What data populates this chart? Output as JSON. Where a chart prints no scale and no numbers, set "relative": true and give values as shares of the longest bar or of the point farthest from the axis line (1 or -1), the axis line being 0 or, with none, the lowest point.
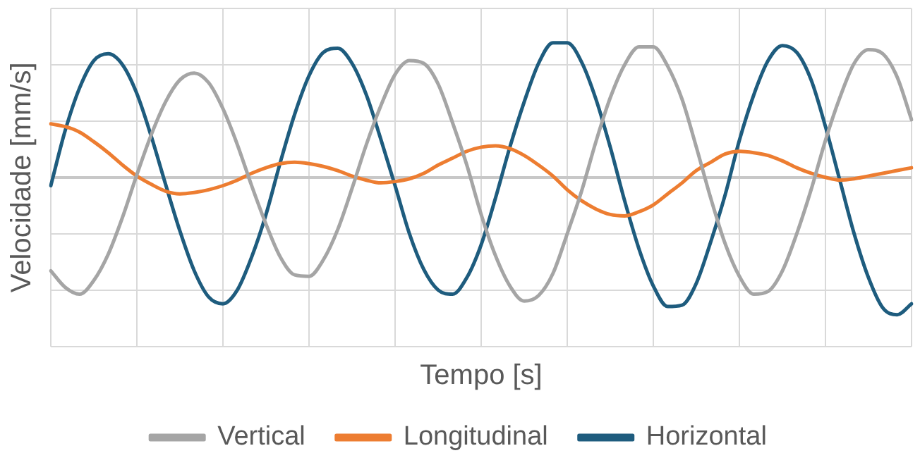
{
  "chart_data": {
    "type": "line",
    "relative": true,
    "xlabel": "Tempo [s]",
    "ylabel": "Velocidade [mm/s]",
    "grid": true,
    "legend": "bottom",
    "marker": "none",
    "line_style": "solid",
    "categories": [
      null,
      null,
      null,
      null,
      null,
      null,
      null,
      null,
      null,
      null,
      null,
      null,
      null,
      null,
      null,
      null,
      null,
      null,
      null,
      null,
      null,
      null,
      null,
      null,
      null,
      null,
      null,
      null,
      null,
      null,
      null,
      null,
      null,
      null,
      null,
      null,
      null,
      null,
      null,
      null,
      null,
      null,
      null,
      null,
      null,
      null,
      null,
      null,
      null,
      null,
      null,
      null,
      null,
      null,
      null,
      null,
      null,
      null,
      null,
      null,
      null
    ],
    "series": [
      {
        "name": "Vertical",
        "color": "#a5a5a5",
        "values": [
          -0.68,
          -0.8,
          -0.85,
          -0.75,
          -0.56,
          -0.29,
          0.02,
          0.31,
          0.55,
          0.71,
          0.76,
          0.69,
          0.5,
          0.24,
          -0.06,
          -0.34,
          -0.58,
          -0.71,
          -0.72,
          -0.6,
          -0.38,
          -0.08,
          0.24,
          0.52,
          0.75,
          0.85,
          0.83,
          0.68,
          0.4,
          0.09,
          -0.27,
          -0.57,
          -0.79,
          -0.9,
          -0.86,
          -0.7,
          -0.41,
          -0.1,
          0.26,
          0.58,
          0.82,
          0.95,
          0.95,
          0.81,
          0.57,
          0.22,
          -0.15,
          -0.48,
          -0.72,
          -0.85,
          -0.83,
          -0.68,
          -0.41,
          -0.09,
          0.27,
          0.58,
          0.83,
          0.93,
          0.9,
          0.73,
          0.42
        ]
      },
      {
        "name": "Longitudinal",
        "color": "#ed7d31",
        "values": [
          0.39,
          0.37,
          0.33,
          0.26,
          0.18,
          0.09,
          0.01,
          -0.05,
          -0.1,
          -0.12,
          -0.11,
          -0.09,
          -0.06,
          -0.02,
          0.03,
          0.07,
          0.1,
          0.11,
          0.1,
          0.08,
          0.05,
          0.01,
          -0.02,
          -0.04,
          -0.03,
          -0.01,
          0.03,
          0.09,
          0.14,
          0.19,
          0.22,
          0.23,
          0.21,
          0.16,
          0.09,
          0.01,
          -0.09,
          -0.17,
          -0.23,
          -0.27,
          -0.28,
          -0.25,
          -0.2,
          -0.12,
          -0.04,
          0.05,
          0.11,
          0.17,
          0.19,
          0.18,
          0.16,
          0.12,
          0.07,
          0.03,
          0,
          -0.02,
          -0.01,
          0.01,
          0.03,
          0.05,
          0.07
        ]
      },
      {
        "name": "Horizontal",
        "color": "#1e5c7e",
        "values": [
          -0.06,
          0.34,
          0.65,
          0.85,
          0.9,
          0.82,
          0.61,
          0.3,
          -0.05,
          -0.39,
          -0.68,
          -0.87,
          -0.92,
          -0.82,
          -0.58,
          -0.27,
          0.11,
          0.46,
          0.74,
          0.91,
          0.94,
          0.83,
          0.6,
          0.28,
          -0.06,
          -0.41,
          -0.67,
          -0.82,
          -0.85,
          -0.73,
          -0.49,
          -0.15,
          0.22,
          0.55,
          0.83,
          0.98,
          0.98,
          0.84,
          0.57,
          0.22,
          -0.17,
          -0.52,
          -0.79,
          -0.94,
          -0.93,
          -0.77,
          -0.47,
          -0.13,
          0.27,
          0.6,
          0.85,
          0.96,
          0.91,
          0.71,
          0.37,
          -0.02,
          -0.41,
          -0.73,
          -0.95,
          -1,
          -0.92
        ]
      }
    ]
  }
}
